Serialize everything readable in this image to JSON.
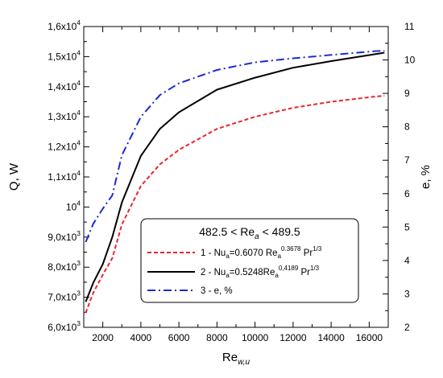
{
  "chart_data": {
    "type": "line",
    "xlabel": {
      "base": "Re",
      "sub": "w,u"
    },
    "ylabel_left": "Q, W",
    "ylabel_right": "e, %",
    "xlim": [
      1000,
      17000
    ],
    "ylim_left": [
      6000,
      16000
    ],
    "ylim_right": [
      2,
      11
    ],
    "x_ticks": [
      {
        "value": 2000,
        "label": "2000"
      },
      {
        "value": 4000,
        "label": "4000"
      },
      {
        "value": 6000,
        "label": "6000"
      },
      {
        "value": 8000,
        "label": "8000"
      },
      {
        "value": 10000,
        "label": "10000"
      },
      {
        "value": 12000,
        "label": "12000"
      },
      {
        "value": 14000,
        "label": "14000"
      },
      {
        "value": 16000,
        "label": "16000"
      }
    ],
    "y_left_ticks": [
      {
        "value": 6000,
        "mant": "6,0x10",
        "exp": "3"
      },
      {
        "value": 7000,
        "mant": "7,0x10",
        "exp": "3"
      },
      {
        "value": 8000,
        "mant": "8,0x10",
        "exp": "3"
      },
      {
        "value": 9000,
        "mant": "9,0x10",
        "exp": "3"
      },
      {
        "value": 10000,
        "mant": "10",
        "exp": "4"
      },
      {
        "value": 11000,
        "mant": "1,1x10",
        "exp": "4"
      },
      {
        "value": 12000,
        "mant": "1,2x10",
        "exp": "4"
      },
      {
        "value": 13000,
        "mant": "1,3x10",
        "exp": "4"
      },
      {
        "value": 14000,
        "mant": "1,4x10",
        "exp": "4"
      },
      {
        "value": 15000,
        "mant": "1,5x10",
        "exp": "4"
      },
      {
        "value": 16000,
        "mant": "1,6x10",
        "exp": "4"
      }
    ],
    "y_right_ticks": [
      {
        "value": 2,
        "label": "2"
      },
      {
        "value": 3,
        "label": "3"
      },
      {
        "value": 4,
        "label": "4"
      },
      {
        "value": 5,
        "label": "5"
      },
      {
        "value": 6,
        "label": "6"
      },
      {
        "value": 7,
        "label": "7"
      },
      {
        "value": 8,
        "label": "8"
      },
      {
        "value": 9,
        "label": "9"
      },
      {
        "value": 10,
        "label": "10"
      },
      {
        "value": 11,
        "label": "11"
      }
    ],
    "legend": {
      "placement": "lower-right",
      "header": {
        "pre": "482.5 < Re",
        "sub": "a",
        "post": " < 489.5"
      },
      "entries": [
        {
          "pre": "1 - Nu",
          "sub": "a",
          "mid": "=0.6070 Re",
          "sub2": "a",
          "sup": "0.3678",
          "tail": " Pr",
          "sup2": "1/3"
        },
        {
          "pre": "2 - Nu",
          "sub": "a",
          "mid": "=0.5248Re",
          "sub2": "a",
          "sup": "0,4189",
          "tail": " Pr",
          "sup2": "1/3"
        },
        {
          "pre": "3 - e, %",
          "sub": "",
          "mid": "",
          "sub2": "",
          "sup": "",
          "tail": "",
          "sup2": ""
        }
      ]
    },
    "series": [
      {
        "axis": "left",
        "color": "#e8262b",
        "style": "dashed",
        "x": [
          1100,
          1500,
          2000,
          2500,
          3000,
          4000,
          5000,
          6000,
          8000,
          10000,
          12000,
          14000,
          16000,
          16800
        ],
        "y": [
          6480,
          7150,
          7750,
          8300,
          9420,
          10700,
          11420,
          11900,
          12600,
          13000,
          13300,
          13500,
          13650,
          13700
        ]
      },
      {
        "axis": "left",
        "color": "#000000",
        "style": "solid",
        "x": [
          1100,
          1500,
          2000,
          2500,
          3000,
          4000,
          5000,
          6000,
          8000,
          10000,
          12000,
          14000,
          16000,
          16800
        ],
        "y": [
          6850,
          7480,
          8100,
          9000,
          10150,
          11700,
          12600,
          13150,
          13900,
          14300,
          14630,
          14850,
          15050,
          15130
        ]
      },
      {
        "axis": "right",
        "color": "#1b2bd1",
        "style": "dashdot",
        "x": [
          1100,
          1500,
          2000,
          2500,
          3000,
          4000,
          5000,
          6000,
          8000,
          10000,
          12000,
          14000,
          16000,
          16800
        ],
        "y": [
          4.55,
          5.1,
          5.55,
          5.95,
          7.15,
          8.3,
          8.95,
          9.3,
          9.7,
          9.93,
          10.05,
          10.15,
          10.25,
          10.28
        ]
      }
    ]
  }
}
